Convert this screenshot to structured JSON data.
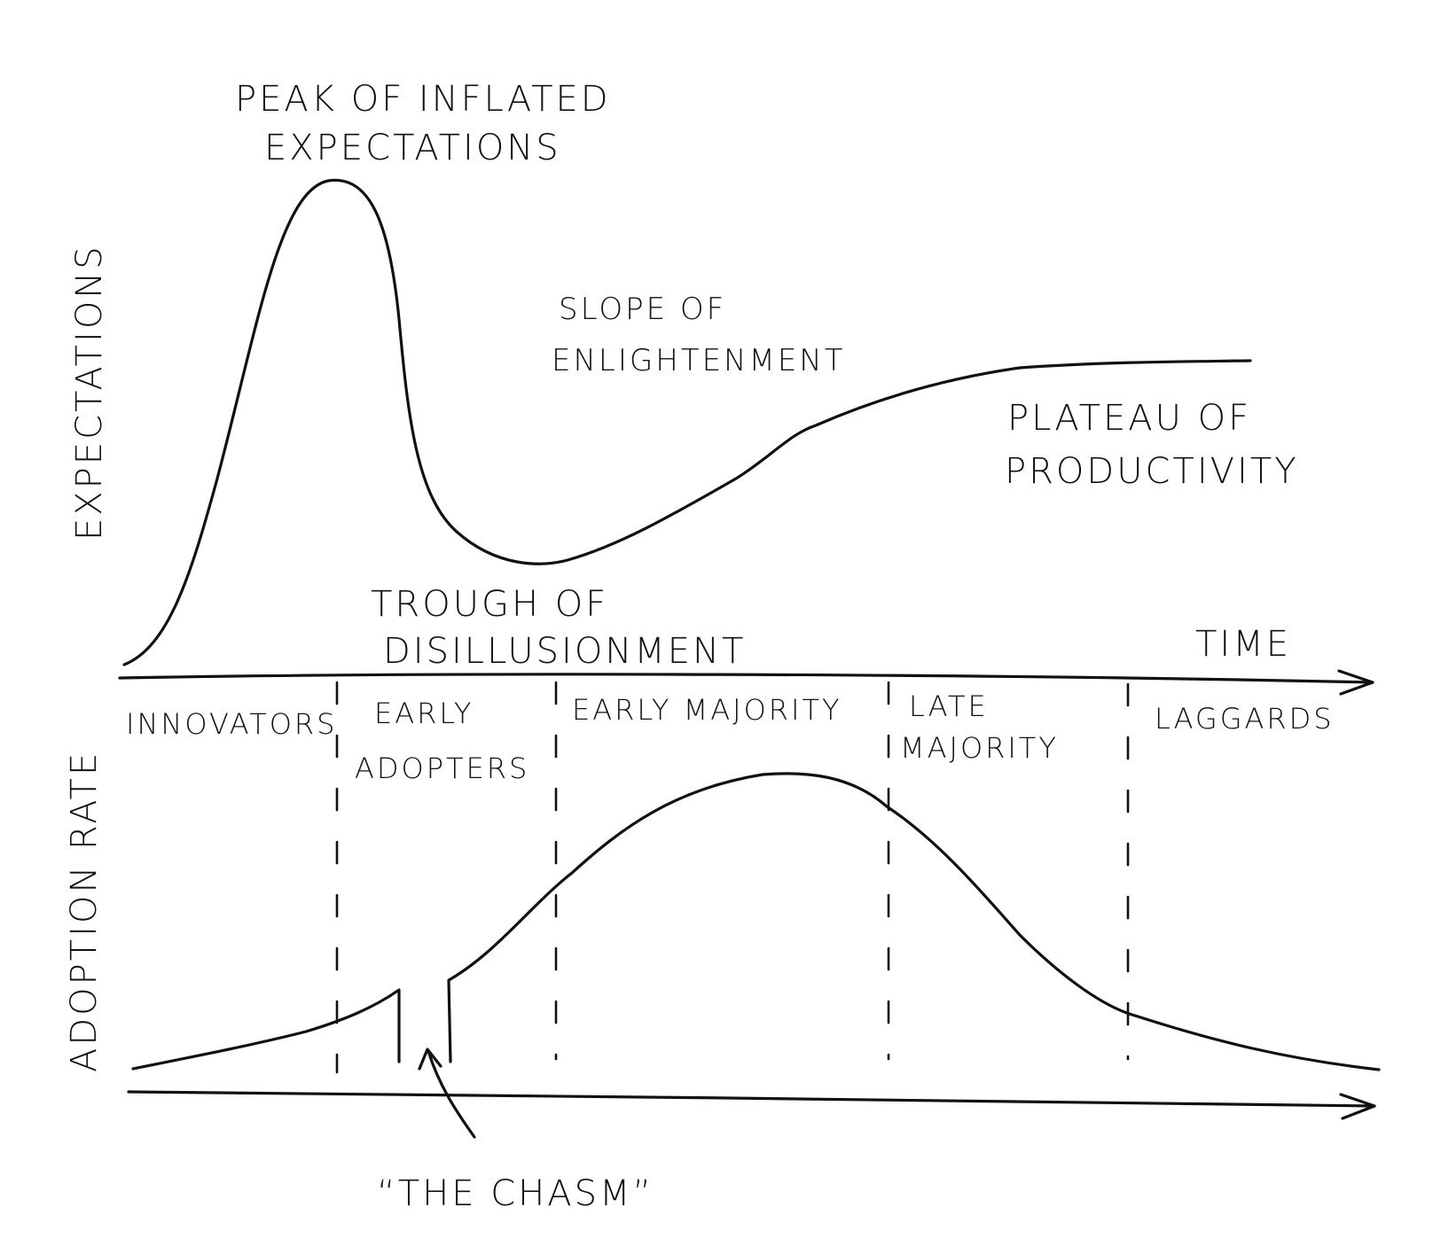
{
  "upper": {
    "y_axis_label": "EXPECTATIONS",
    "x_axis_label": "TIME",
    "phases": {
      "peak": [
        "PEAK OF INFLATED",
        "EXPECTATIONS"
      ],
      "trough": [
        "TROUGH OF",
        "DISILLUSIONMENT"
      ],
      "slope": [
        "SLOPE OF",
        "ENLIGHTENMENT"
      ],
      "plateau": [
        "PLATEAU OF",
        "PRODUCTIVITY"
      ]
    }
  },
  "lower": {
    "y_axis_label": "ADOPTION RATE",
    "segments": {
      "innovators": "INNOVATORS",
      "early_adopters": [
        "EARLY",
        "ADOPTERS"
      ],
      "early_majority": "EARLY MAJORITY",
      "late_majority": [
        "LATE",
        "MAJORITY"
      ],
      "laggards": "LAGGARDS"
    },
    "chasm_label": "“THE CHASM”"
  },
  "colors": {
    "ink": "#111111",
    "background": "#ffffff"
  }
}
